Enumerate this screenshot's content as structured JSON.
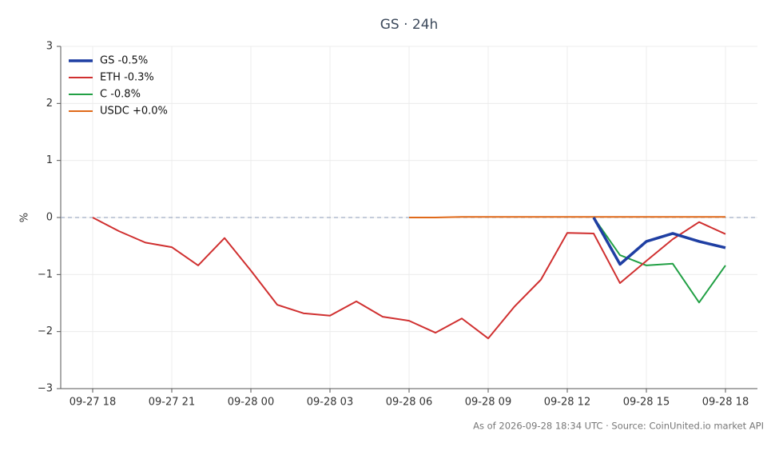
{
  "chart_data": {
    "type": "line",
    "title": "GS · 24h",
    "ylabel": "%",
    "footer": "As of 2026-09-28 18:34 UTC · Source: CoinUnited.io market API",
    "categories": [
      "09-27 18",
      null,
      null,
      "09-27 21",
      null,
      null,
      "09-28 00",
      null,
      null,
      "09-28 03",
      null,
      null,
      "09-28 06",
      null,
      null,
      "09-28 09",
      null,
      null,
      "09-28 12",
      null,
      null,
      "09-28 15",
      null,
      null,
      "09-28 18"
    ],
    "series": [
      {
        "name": "GS -0.5%",
        "color": "#1f3fa3",
        "linewidth": 3.5,
        "values": [
          null,
          null,
          null,
          null,
          null,
          null,
          null,
          null,
          null,
          null,
          null,
          null,
          null,
          null,
          null,
          null,
          null,
          null,
          null,
          0,
          -0.82,
          -0.42,
          -0.28,
          -0.42,
          -0.53
        ]
      },
      {
        "name": "ETH -0.3%",
        "color": "#d03030",
        "linewidth": 2,
        "values": [
          0,
          -0.24,
          -0.44,
          -0.52,
          -0.84,
          -0.36,
          -0.93,
          -1.53,
          -1.68,
          -1.72,
          -1.47,
          -1.74,
          -1.81,
          -2.02,
          -1.77,
          -2.12,
          -1.56,
          -1.09,
          -0.27,
          -0.28,
          -1.15,
          -0.76,
          -0.38,
          -0.08,
          -0.29
        ]
      },
      {
        "name": "C -0.8%",
        "color": "#22a045",
        "linewidth": 2,
        "values": [
          null,
          null,
          null,
          null,
          null,
          null,
          null,
          null,
          null,
          null,
          null,
          null,
          null,
          null,
          null,
          null,
          null,
          null,
          null,
          0,
          -0.66,
          -0.84,
          -0.81,
          -1.49,
          -0.84
        ]
      },
      {
        "name": "USDC +0.0%",
        "color": "#e06a1a",
        "linewidth": 2,
        "values": [
          null,
          null,
          null,
          null,
          null,
          null,
          null,
          null,
          null,
          null,
          null,
          null,
          0,
          0,
          0.01,
          0.01,
          0.01,
          0.01,
          0.01,
          0.01,
          0.01,
          0.01,
          0.01,
          0.01,
          0.01
        ]
      }
    ],
    "ylim": [
      -3,
      3
    ],
    "yticks": [
      {
        "value": -3,
        "label": "−3"
      },
      {
        "value": -2,
        "label": "−2"
      },
      {
        "value": -1,
        "label": "−1"
      },
      0,
      1,
      2,
      3
    ],
    "grid": true,
    "reference_line": 0,
    "legend": "upper left"
  }
}
